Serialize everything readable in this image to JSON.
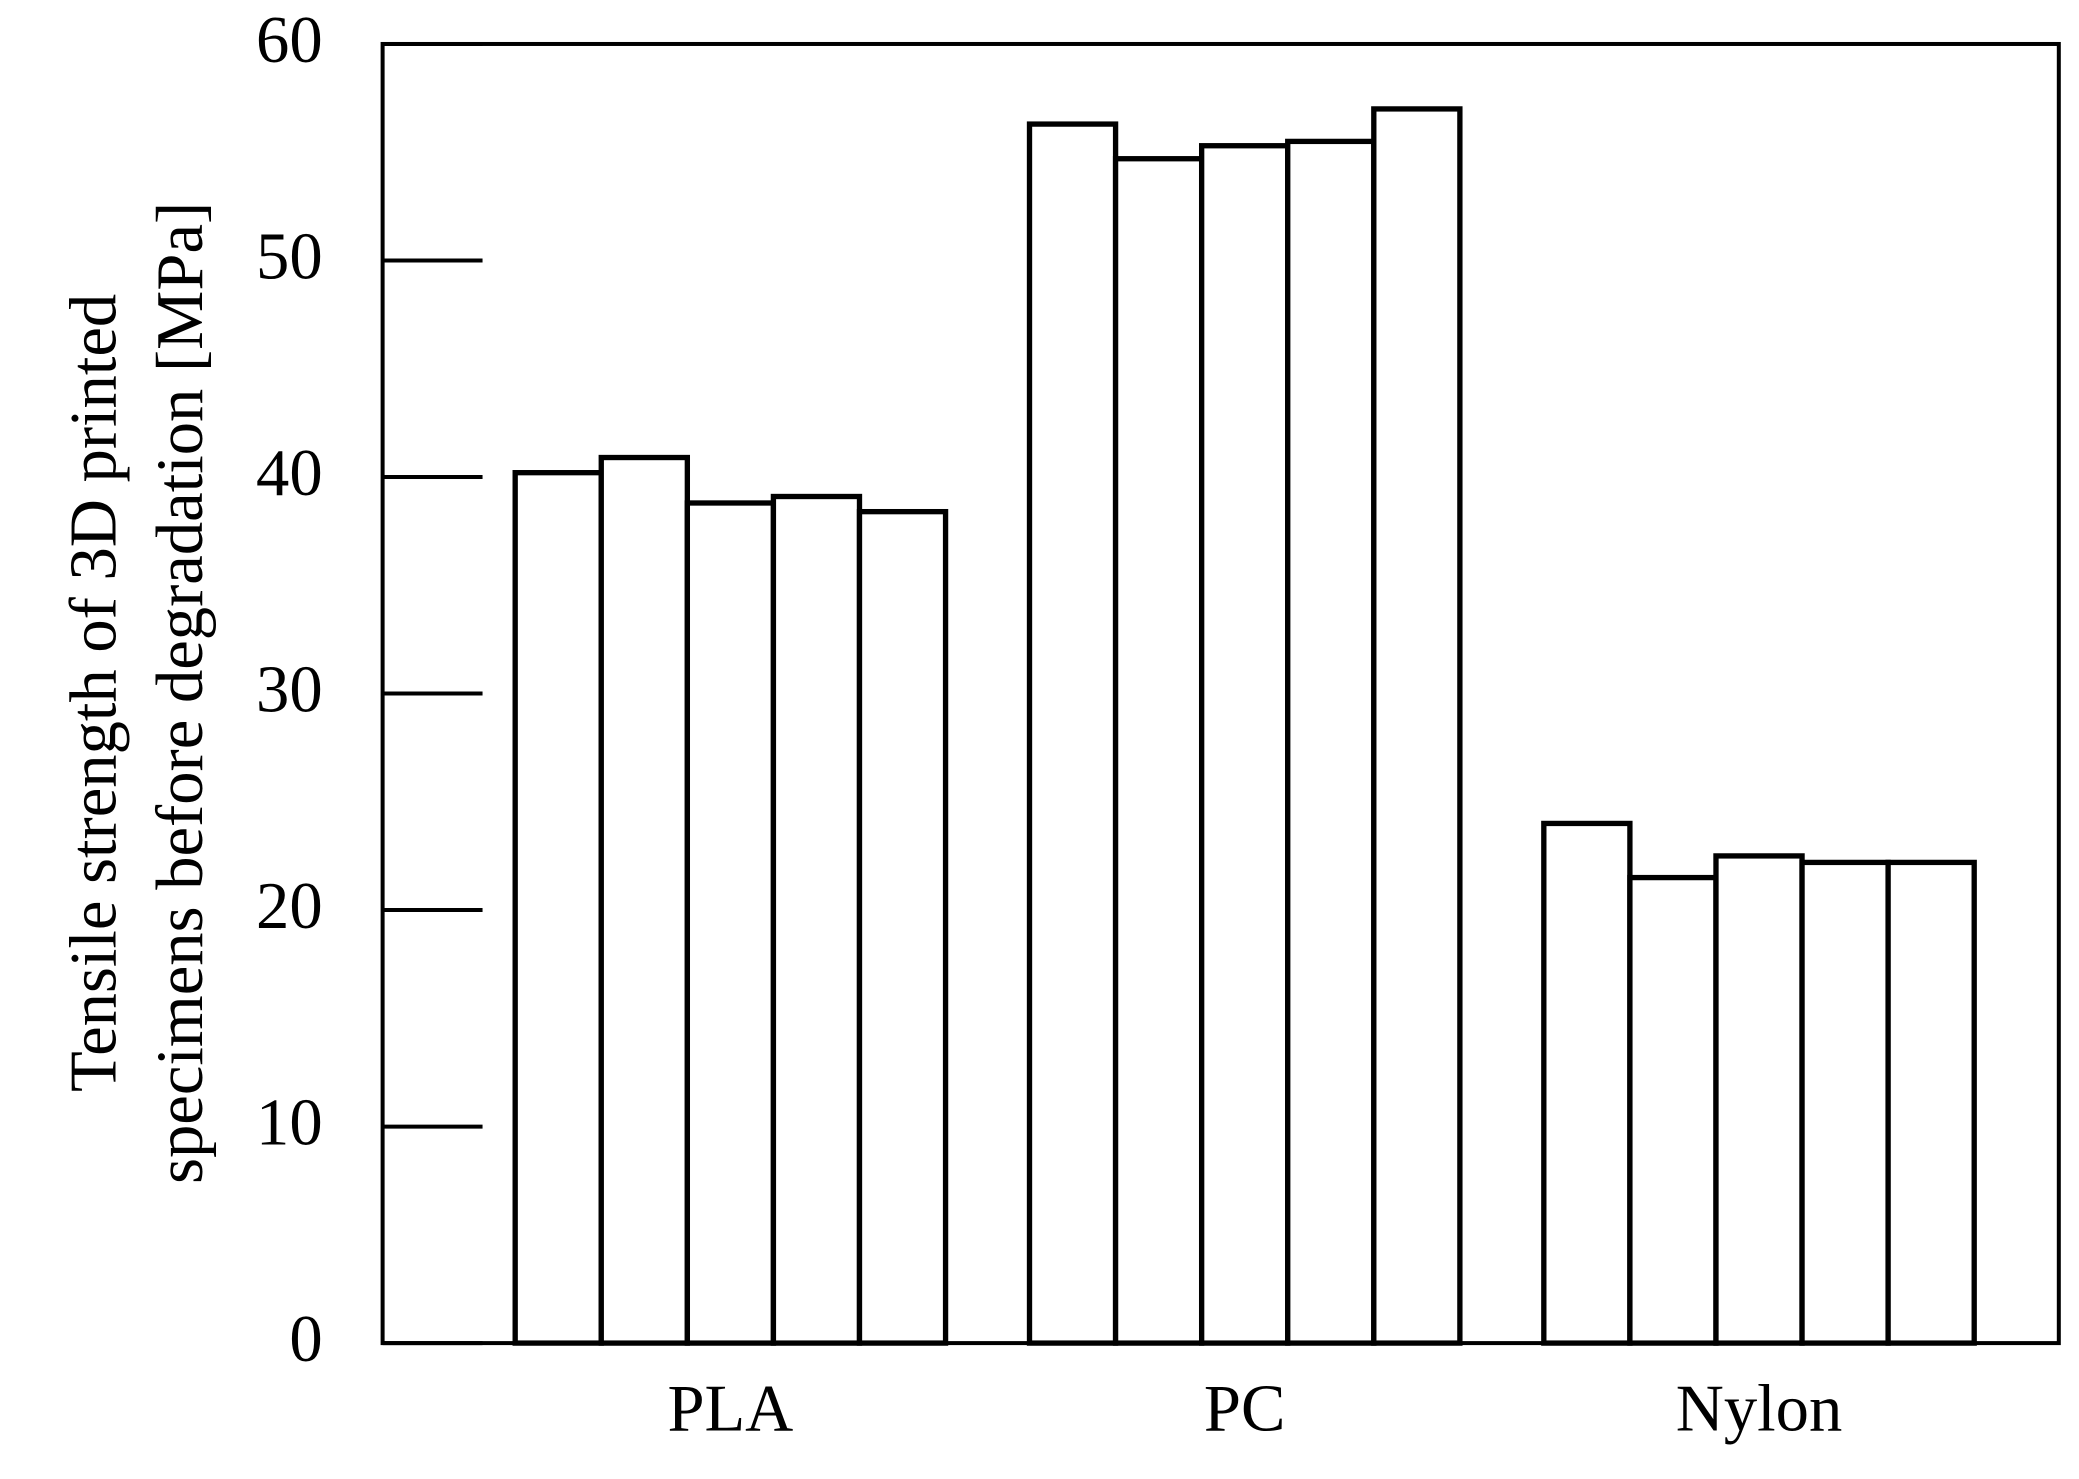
{
  "chart_data": {
    "type": "bar",
    "ylabel": [
      "Tensile strength of 3D printed",
      "specimens before degradation [MPa]"
    ],
    "categories": [
      "PLA",
      "PC",
      "Nylon"
    ],
    "series": [
      {
        "color": "#ffffff",
        "values": [
          40.2,
          56.3,
          24.0
        ]
      },
      {
        "color": "#ffffff",
        "values": [
          40.9,
          54.7,
          21.5
        ]
      },
      {
        "color": "#ffffff",
        "values": [
          38.8,
          55.3,
          22.5
        ]
      },
      {
        "color": "#ffffff",
        "values": [
          39.1,
          55.5,
          22.2
        ]
      },
      {
        "color": "#ffffff",
        "values": [
          38.4,
          57.0,
          22.2
        ]
      }
    ],
    "ylim": [
      0,
      60
    ],
    "yticks": [
      0,
      10,
      20,
      30,
      40,
      50,
      60
    ],
    "grid": false
  }
}
